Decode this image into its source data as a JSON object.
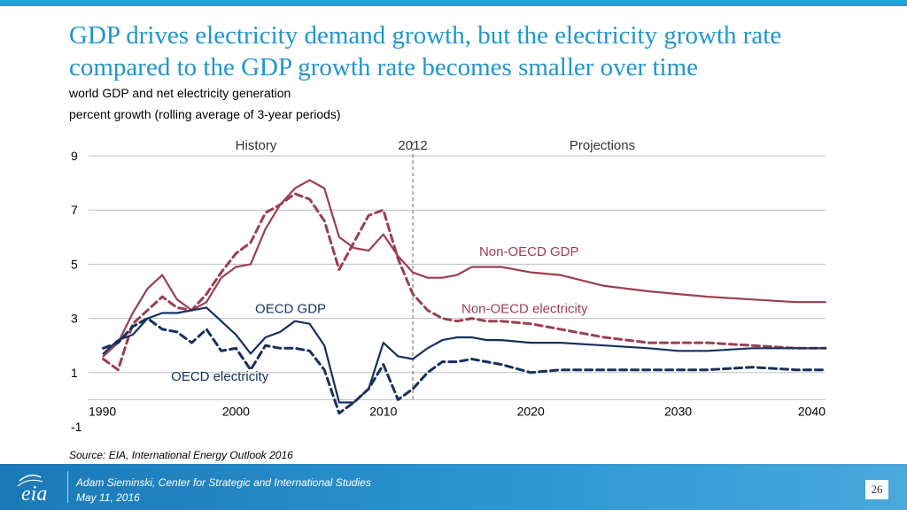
{
  "slide": {
    "title": "GDP drives electricity demand growth, but the electricity growth rate compared to the GDP growth rate becomes smaller over time",
    "subtitle_line1": "world GDP and net electricity generation",
    "subtitle_line2": "percent growth (rolling average of 3-year periods)",
    "source": "Source:  EIA, International Energy Outlook 2016",
    "page_number": "26"
  },
  "footer": {
    "logo_text": "eia",
    "presenter": "Adam Sieminski, Center for Strategic and International Studies",
    "date": "May 11, 2016"
  },
  "colors": {
    "title": "#1e96cf",
    "non_oecd": "#9b3f52",
    "oecd": "#17305e",
    "footer": "#2a96d2"
  },
  "chart_data": {
    "type": "line",
    "xlim": [
      1990,
      2040
    ],
    "ylim": [
      -1,
      9
    ],
    "x_ticks": [
      1990,
      2000,
      2010,
      2020,
      2030,
      2040
    ],
    "y_ticks": [
      -1,
      1,
      3,
      5,
      7,
      9
    ],
    "divider_year": 2012,
    "region_labels": {
      "history": "History",
      "divider": "2012",
      "projections": "Projections"
    },
    "series": [
      {
        "name": "Non-OECD GDP",
        "style": "solid",
        "color": "#9b3f52",
        "x": [
          1991,
          1992,
          1993,
          1994,
          1995,
          1996,
          1997,
          1998,
          1999,
          2000,
          2001,
          2002,
          2003,
          2004,
          2005,
          2006,
          2007,
          2008,
          2009,
          2010,
          2011,
          2012,
          2013,
          2014,
          2015,
          2016,
          2017,
          2018,
          2020,
          2022,
          2025,
          2028,
          2030,
          2032,
          2035,
          2038,
          2040
        ],
        "y": [
          1.6,
          2.1,
          3.2,
          4.1,
          4.6,
          3.7,
          3.3,
          3.6,
          4.5,
          4.9,
          5.0,
          6.3,
          7.2,
          7.8,
          8.1,
          7.8,
          6.0,
          5.6,
          5.5,
          6.1,
          5.3,
          4.7,
          4.5,
          4.5,
          4.6,
          4.9,
          4.9,
          4.9,
          4.7,
          4.6,
          4.2,
          4.0,
          3.9,
          3.8,
          3.7,
          3.6,
          3.6
        ]
      },
      {
        "name": "Non-OECD electricity",
        "style": "dashed",
        "color": "#9b3f52",
        "x": [
          1991,
          1992,
          1993,
          1994,
          1995,
          1996,
          1997,
          1998,
          1999,
          2000,
          2001,
          2002,
          2003,
          2004,
          2005,
          2006,
          2007,
          2008,
          2009,
          2010,
          2011,
          2012,
          2013,
          2014,
          2015,
          2016,
          2017,
          2018,
          2020,
          2022,
          2025,
          2028,
          2030,
          2032,
          2035,
          2038,
          2040
        ],
        "y": [
          1.5,
          1.1,
          2.8,
          3.3,
          3.8,
          3.4,
          3.3,
          3.9,
          4.7,
          5.4,
          5.8,
          6.9,
          7.2,
          7.6,
          7.4,
          6.6,
          4.8,
          5.8,
          6.8,
          7.0,
          5.2,
          3.9,
          3.3,
          3.0,
          2.9,
          3.0,
          2.9,
          2.9,
          2.8,
          2.6,
          2.3,
          2.1,
          2.1,
          2.1,
          2.0,
          1.9,
          1.9
        ]
      },
      {
        "name": "OECD GDP",
        "style": "solid",
        "color": "#17305e",
        "x": [
          1991,
          1992,
          1993,
          1994,
          1995,
          1996,
          1997,
          1998,
          1999,
          2000,
          2001,
          2002,
          2003,
          2004,
          2005,
          2006,
          2007,
          2008,
          2009,
          2010,
          2011,
          2012,
          2013,
          2014,
          2015,
          2016,
          2017,
          2018,
          2020,
          2022,
          2025,
          2028,
          2030,
          2032,
          2035,
          2038,
          2040
        ],
        "y": [
          1.7,
          2.2,
          2.4,
          3.0,
          3.2,
          3.2,
          3.3,
          3.4,
          2.9,
          2.4,
          1.7,
          2.3,
          2.5,
          2.9,
          2.8,
          2.0,
          -0.1,
          -0.1,
          0.4,
          2.1,
          1.6,
          1.5,
          1.9,
          2.2,
          2.3,
          2.3,
          2.2,
          2.2,
          2.1,
          2.1,
          2.0,
          1.9,
          1.8,
          1.8,
          1.9,
          1.9,
          1.9
        ]
      },
      {
        "name": "OECD electricity",
        "style": "dashed",
        "color": "#17305e",
        "x": [
          1991,
          1992,
          1993,
          1994,
          1995,
          1996,
          1997,
          1998,
          1999,
          2000,
          2001,
          2002,
          2003,
          2004,
          2005,
          2006,
          2007,
          2008,
          2009,
          2010,
          2011,
          2012,
          2013,
          2014,
          2015,
          2016,
          2017,
          2018,
          2020,
          2022,
          2025,
          2028,
          2030,
          2032,
          2035,
          2038,
          2040
        ],
        "y": [
          1.9,
          2.1,
          2.7,
          3.0,
          2.6,
          2.5,
          2.1,
          2.6,
          1.8,
          1.9,
          1.1,
          2.0,
          1.9,
          1.9,
          1.8,
          1.1,
          -0.5,
          -0.1,
          0.4,
          1.3,
          0.0,
          0.4,
          1.0,
          1.4,
          1.4,
          1.5,
          1.4,
          1.3,
          1.0,
          1.1,
          1.1,
          1.1,
          1.1,
          1.1,
          1.2,
          1.1,
          1.1
        ]
      }
    ],
    "annotations": [
      {
        "text": "Non-OECD GDP",
        "series": "Non-OECD GDP",
        "x": 2016.5,
        "y": 5.3
      },
      {
        "text": "Non-OECD electricity",
        "series": "Non-OECD electricity",
        "x": 2015.3,
        "y": 3.2
      },
      {
        "text": "OECD GDP",
        "series": "OECD GDP",
        "x": 2001.3,
        "y": 3.2
      },
      {
        "text": "OECD electricity",
        "series": "OECD electricity",
        "x": 1995.6,
        "y": 0.7
      }
    ]
  }
}
